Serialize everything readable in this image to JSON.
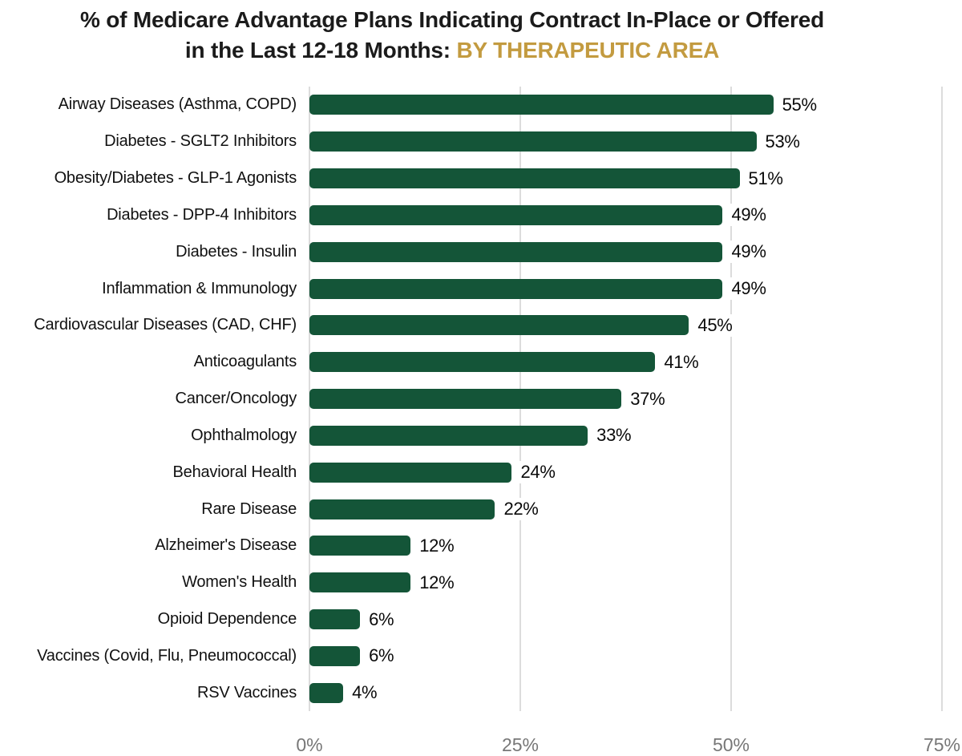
{
  "title": {
    "line1": "% of Medicare Advantage Plans Indicating Contract In-Place or Offered",
    "line2_black": "in the Last 12-18 Months:",
    "line2_gold": "BY THERAPEUTIC AREA"
  },
  "colors": {
    "bar": "#145538",
    "title_text": "#1b1b1b",
    "title_accent": "#c39b40",
    "axis_label": "#777777",
    "gridline": "#dcdcdc",
    "value_label": "#0a0a0a"
  },
  "chart_data": {
    "type": "bar",
    "orientation": "horizontal",
    "title": "% of Medicare Advantage Plans Indicating Contract In-Place or Offered in the Last 12-18 Months: BY THERAPEUTIC AREA",
    "xlabel": "",
    "ylabel": "",
    "xlim": [
      0,
      75
    ],
    "x_ticks": [
      "0%",
      "25%",
      "50%",
      "75%"
    ],
    "grid": true,
    "legend": false,
    "categories": [
      "Airway Diseases (Asthma, COPD)",
      "Diabetes - SGLT2 Inhibitors",
      "Obesity/Diabetes - GLP-1 Agonists",
      "Diabetes - DPP-4 Inhibitors",
      "Diabetes - Insulin",
      "Inflammation & Immunology",
      "Cardiovascular Diseases (CAD, CHF)",
      "Anticoagulants",
      "Cancer/Oncology",
      "Ophthalmology",
      "Behavioral Health",
      "Rare Disease",
      "Alzheimer's Disease",
      "Women's Health",
      "Opioid Dependence",
      "Vaccines (Covid, Flu, Pneumococcal)",
      "RSV Vaccines"
    ],
    "values": [
      55,
      53,
      51,
      49,
      49,
      49,
      45,
      41,
      37,
      33,
      24,
      22,
      12,
      12,
      6,
      6,
      4
    ],
    "value_labels": [
      "55%",
      "53%",
      "51%",
      "49%",
      "49%",
      "49%",
      "45%",
      "41%",
      "37%",
      "33%",
      "24%",
      "22%",
      "12%",
      "12%",
      "6%",
      "6%",
      "4%"
    ]
  }
}
